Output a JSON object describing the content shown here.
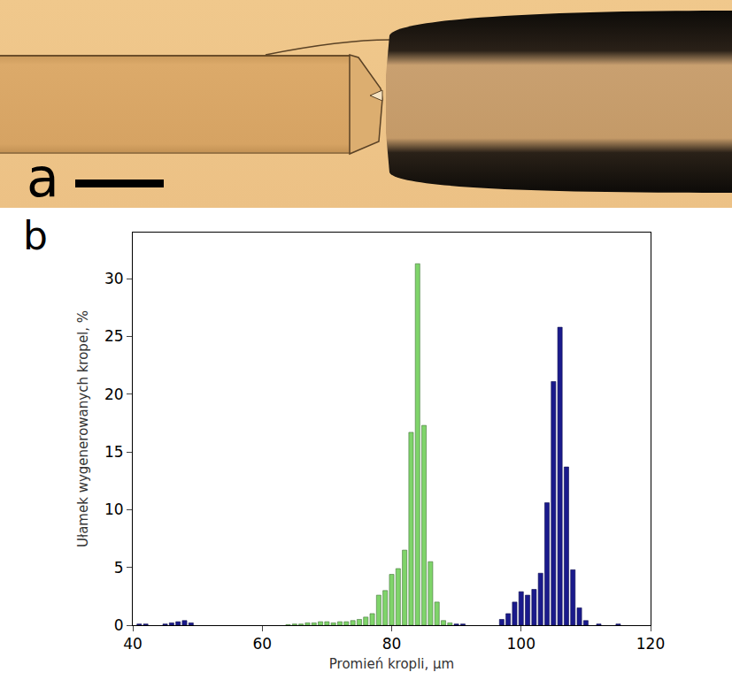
{
  "photo_panel": {
    "label": "a"
  },
  "chart_panel": {
    "label": "b"
  },
  "chart_data": {
    "type": "bar",
    "x_label": "Promień kropli, µm",
    "y_label": "Ułamek wygenerowanych kropel, %",
    "xlim": [
      40,
      120
    ],
    "xticks": [
      40,
      60,
      80,
      100,
      120
    ],
    "ylim": [
      0,
      34
    ],
    "yticks": [
      0,
      5,
      10,
      15,
      20,
      25,
      30
    ],
    "grid": false,
    "series": [
      {
        "color": "#7fd46a",
        "x": [
          64,
          65,
          66,
          67,
          68,
          69,
          70,
          71,
          72,
          73,
          74,
          75,
          76,
          77,
          78,
          79,
          80,
          81,
          82,
          83,
          84,
          85,
          86,
          87,
          88,
          89
        ],
        "values": [
          0.05,
          0.1,
          0.1,
          0.2,
          0.2,
          0.3,
          0.3,
          0.2,
          0.3,
          0.3,
          0.4,
          0.5,
          0.7,
          1.0,
          2.6,
          3.0,
          4.4,
          4.9,
          6.5,
          16.7,
          31.3,
          17.3,
          5.5,
          2.0,
          0.4,
          0.2
        ]
      },
      {
        "color": "#1a1a8c",
        "x": [
          41,
          42,
          45,
          46,
          47,
          48,
          49,
          90,
          91,
          97,
          98,
          99,
          100,
          101,
          102,
          103,
          104,
          105,
          106,
          107,
          108,
          109,
          110,
          112,
          115
        ],
        "values": [
          0.1,
          0.1,
          0.1,
          0.2,
          0.3,
          0.4,
          0.2,
          0.1,
          0.1,
          0.5,
          1.0,
          2.0,
          2.9,
          2.6,
          3.1,
          4.5,
          10.6,
          21.1,
          25.8,
          13.7,
          4.8,
          1.5,
          0.4,
          0.1,
          0.1
        ]
      }
    ]
  }
}
